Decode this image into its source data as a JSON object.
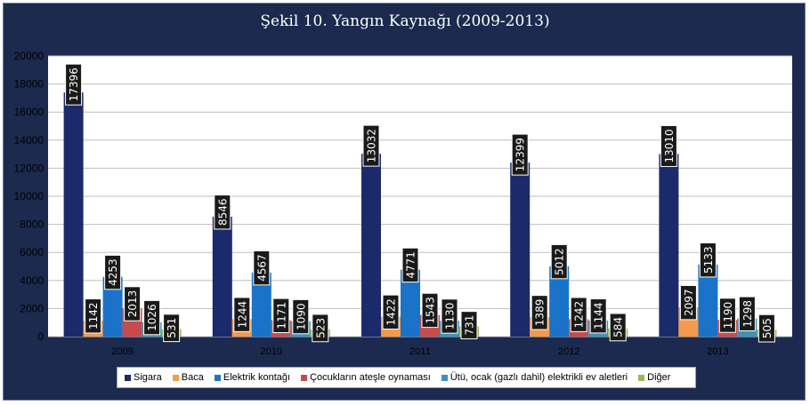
{
  "chart_data": {
    "type": "bar",
    "title": "Şekil  10. Yangın Kaynağı (2009-2013)",
    "categories": [
      "2009",
      "2010",
      "2011",
      "2012",
      "2013"
    ],
    "ylim": [
      0,
      20000
    ],
    "yticks": [
      "0",
      "2000",
      "4000",
      "6000",
      "8000",
      "10000",
      "12000",
      "14000",
      "16000",
      "18000",
      "20000"
    ],
    "grid": true,
    "legend_position": "bottom",
    "series": [
      {
        "name": "Sigara",
        "color": "#1b2a6b",
        "values": [
          17396,
          8546,
          13032,
          12399,
          13010
        ]
      },
      {
        "name": "Baca",
        "color": "#f39a4c",
        "values": [
          1142,
          1244,
          1422,
          1389,
          2097
        ]
      },
      {
        "name": "Elektrik kontağı",
        "color": "#1a73c9",
        "values": [
          4253,
          4567,
          4771,
          5012,
          5133
        ]
      },
      {
        "name": "Çocukların ateşle oynaması",
        "color": "#c84b4b",
        "values": [
          2013,
          1171,
          1543,
          1242,
          1190
        ]
      },
      {
        "name": "Ütü, ocak (gazlı dahil) elektrikli ev aletleri",
        "color": "#3b93b8",
        "values": [
          1026,
          1090,
          1130,
          1144,
          1298
        ]
      },
      {
        "name": "Diğer",
        "color": "#96b957",
        "values": [
          531,
          523,
          731,
          584,
          505
        ]
      }
    ]
  }
}
